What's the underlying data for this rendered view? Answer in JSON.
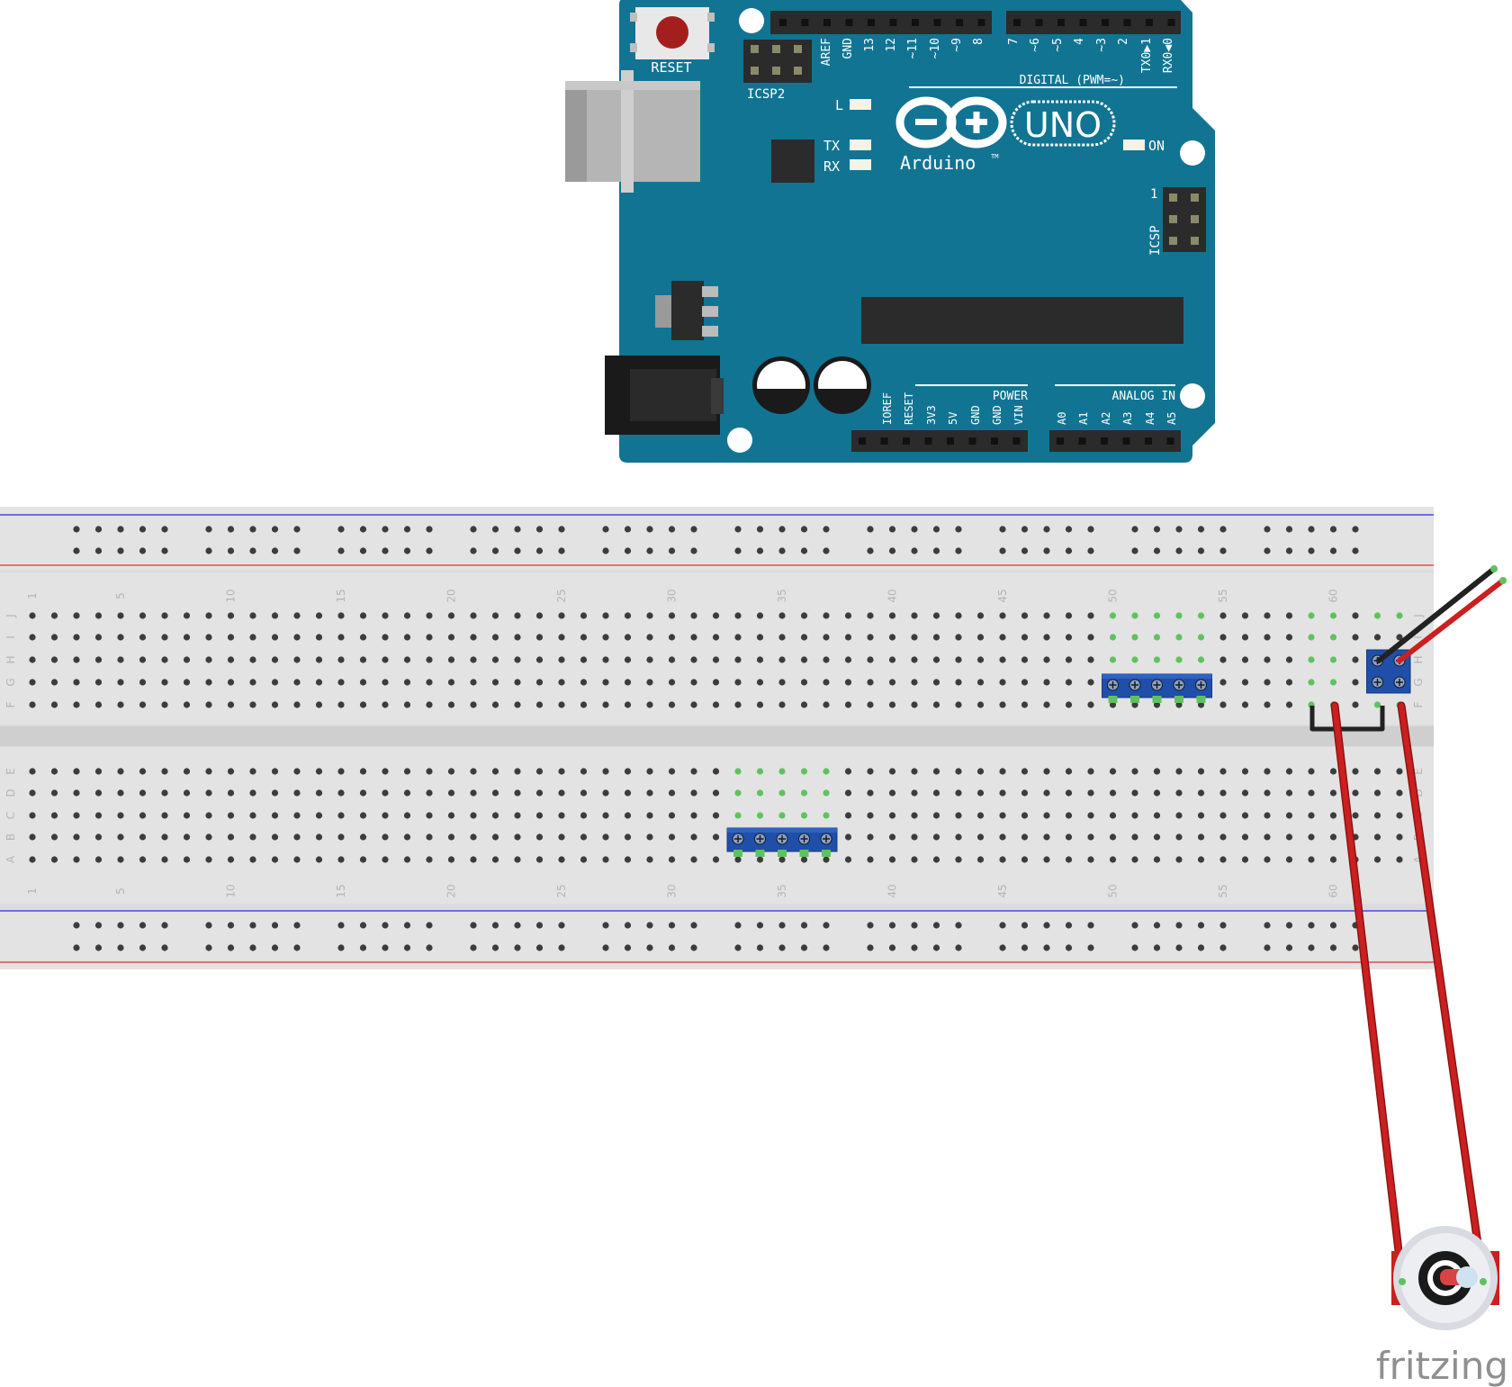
{
  "arduino": {
    "reset_label": "RESET",
    "icsp2_label": "ICSP2",
    "icsp_label": "ICSP",
    "icsp_pin1": "1",
    "digital_pins": [
      "AREF",
      "GND",
      "13",
      "12",
      "~11",
      "~10",
      "~9",
      "8",
      "7",
      "~6",
      "~5",
      "4",
      "~3",
      "2",
      "TX0▶1",
      "RX0◀0"
    ],
    "digital_label": "DIGITAL (PWM=~)",
    "led_l": "L",
    "led_tx": "TX",
    "led_rx": "RX",
    "led_on": "ON",
    "brand": "Arduino",
    "brand_tm": "TM",
    "model": "UNO",
    "power_label": "POWER",
    "power_pins": [
      "IOREF",
      "RESET",
      "3V3",
      "5V",
      "GND",
      "GND",
      "VIN"
    ],
    "analog_label": "ANALOG IN",
    "analog_pins": [
      "A0",
      "A1",
      "A2",
      "A3",
      "A4",
      "A5"
    ],
    "board_color": "#127493"
  },
  "breadboard": {
    "column_numbers": [
      "1",
      "5",
      "10",
      "15",
      "20",
      "25",
      "30",
      "35",
      "40",
      "45",
      "50",
      "55",
      "60"
    ],
    "top_rows": [
      "J",
      "I",
      "H",
      "G",
      "F"
    ],
    "bottom_rows": [
      "E",
      "D",
      "C",
      "B",
      "A"
    ],
    "rail_blue": "#2a2ae0",
    "rail_red": "#e03030"
  },
  "components": {
    "header_top": "5-pin header on row F, columns 50–54",
    "header_bottom": "5-pin header on row A, columns 33–37",
    "header_right": "2x2 connector at columns 62–63",
    "jumper_black": "black jumper columns 60–63 below row F",
    "wire_color_red": "#cc1f1f",
    "wire_color_black": "#222222"
  },
  "footer": {
    "logo": "fritzing"
  }
}
